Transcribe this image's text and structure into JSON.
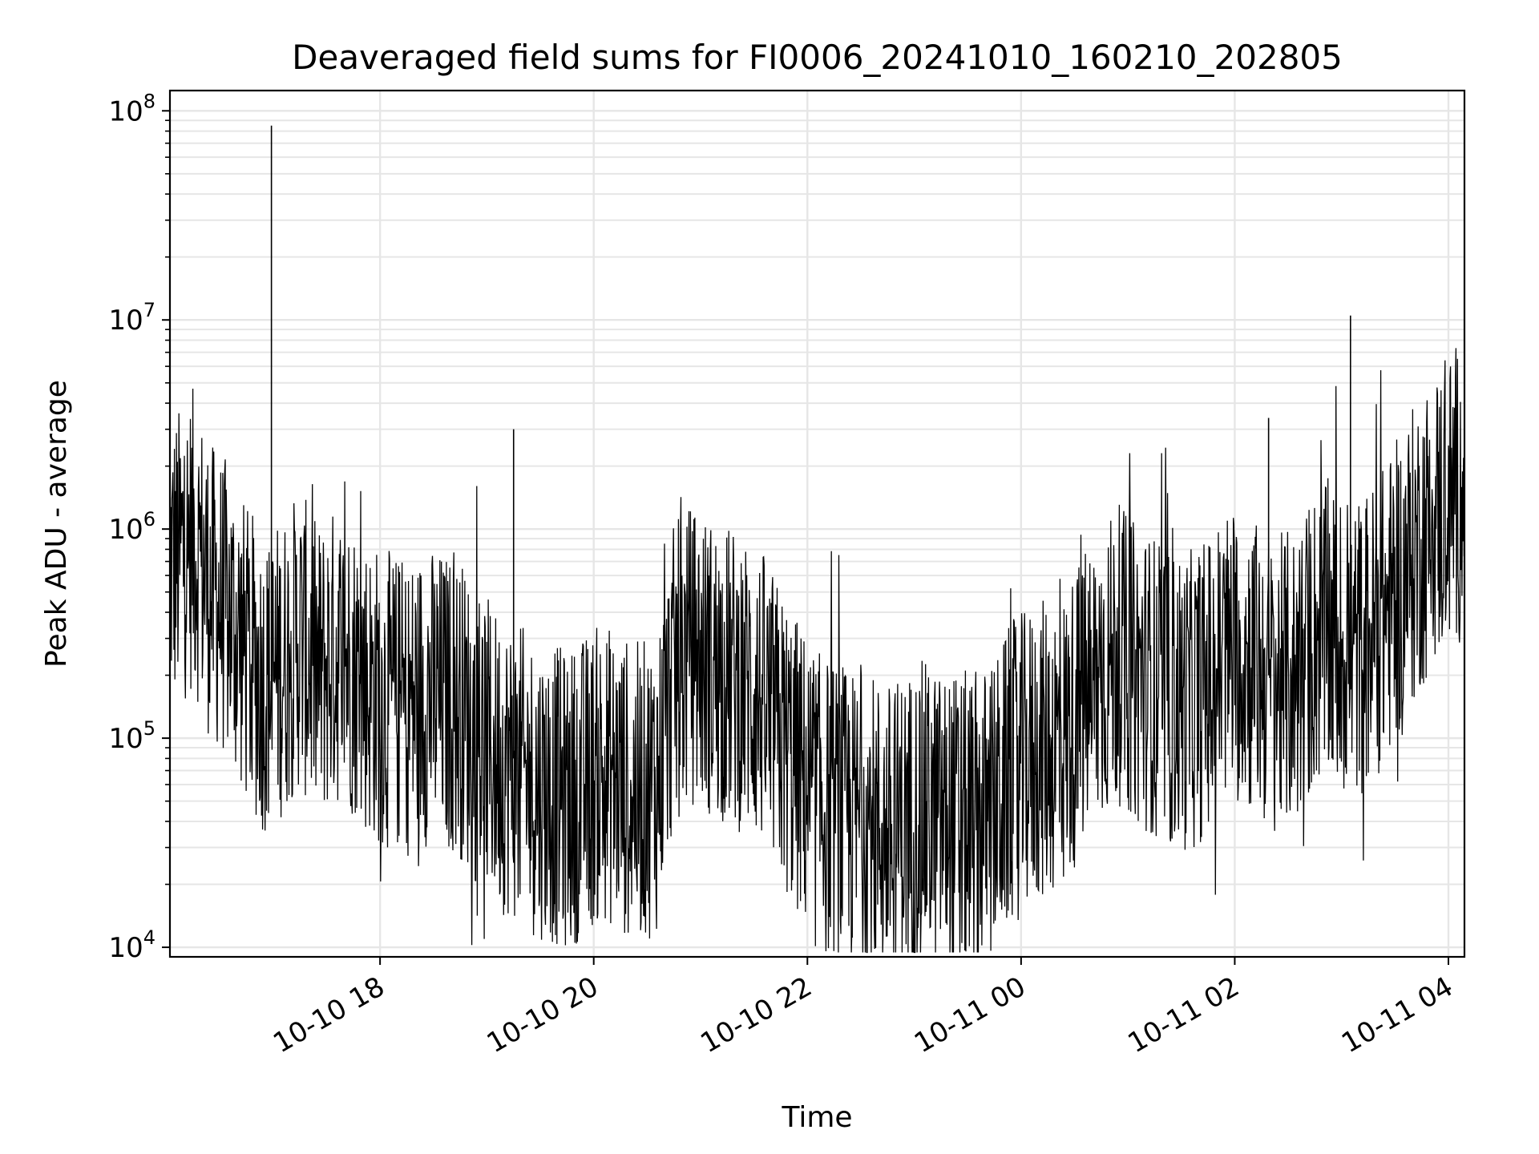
{
  "chart_data": {
    "type": "line",
    "title": "Deaveraged field sums for FI0006_20241010_160210_202805",
    "xlabel": "Time",
    "ylabel": "Peak ADU - average",
    "xscale": "time",
    "yscale": "log",
    "xlim": [
      "2024-10-10 16:02",
      "2024-10-11 04:09"
    ],
    "ylim": [
      9000,
      125000000
    ],
    "grid": true,
    "legend": "none",
    "line_color": "#000000",
    "grid_color": "#e6e6e6",
    "x_ticks": [
      {
        "value": "2024-10-10 18:00",
        "label": "10-10 18"
      },
      {
        "value": "2024-10-10 20:00",
        "label": "10-10 20"
      },
      {
        "value": "2024-10-10 22:00",
        "label": "10-10 22"
      },
      {
        "value": "2024-10-11 00:00",
        "label": "10-11 00"
      },
      {
        "value": "2024-10-11 02:00",
        "label": "10-11 02"
      },
      {
        "value": "2024-10-11 04:00",
        "label": "10-11 04"
      }
    ],
    "y_ticks": [
      {
        "value": 10000,
        "base": "10",
        "exp": "4"
      },
      {
        "value": 100000,
        "base": "10",
        "exp": "5"
      },
      {
        "value": 1000000,
        "base": "10",
        "exp": "6"
      },
      {
        "value": 10000000,
        "base": "10",
        "exp": "7"
      },
      {
        "value": 100000000,
        "base": "10",
        "exp": "8"
      }
    ],
    "series": [
      {
        "values": [
          [
            "2024-10-10 16:05",
            700000
          ],
          [
            "2024-10-10 16:15",
            900000
          ],
          [
            "2024-10-10 16:25",
            500000
          ],
          [
            "2024-10-10 16:35",
            400000
          ],
          [
            "2024-10-10 16:45",
            250000
          ],
          [
            "2024-10-10 16:55",
            180000
          ],
          [
            "2024-10-10 17:05",
            220000
          ],
          [
            "2024-10-10 17:15",
            300000
          ],
          [
            "2024-10-10 17:25",
            200000
          ],
          [
            "2024-10-10 17:35",
            250000
          ],
          [
            "2024-10-10 17:45",
            220000
          ],
          [
            "2024-10-10 17:55",
            170000
          ],
          [
            "2024-10-10 18:05",
            150000
          ],
          [
            "2024-10-10 18:15",
            140000
          ],
          [
            "2024-10-10 18:25",
            160000
          ],
          [
            "2024-10-10 18:35",
            150000
          ],
          [
            "2024-10-10 18:45",
            140000
          ],
          [
            "2024-10-10 18:55",
            100000
          ],
          [
            "2024-10-10 19:05",
            80000
          ],
          [
            "2024-10-10 19:15",
            70000
          ],
          [
            "2024-10-10 19:25",
            60000
          ],
          [
            "2024-10-10 19:35",
            55000
          ],
          [
            "2024-10-10 19:45",
            50000
          ],
          [
            "2024-10-10 19:55",
            60000
          ],
          [
            "2024-10-10 20:05",
            70000
          ],
          [
            "2024-10-10 20:15",
            60000
          ],
          [
            "2024-10-10 20:25",
            55000
          ],
          [
            "2024-10-10 20:35",
            60000
          ],
          [
            "2024-10-10 20:45",
            200000
          ],
          [
            "2024-10-10 20:55",
            250000
          ],
          [
            "2024-10-10 21:05",
            220000
          ],
          [
            "2024-10-10 21:15",
            200000
          ],
          [
            "2024-10-10 21:25",
            180000
          ],
          [
            "2024-10-10 21:35",
            150000
          ],
          [
            "2024-10-10 21:45",
            100000
          ],
          [
            "2024-10-10 21:55",
            70000
          ],
          [
            "2024-10-10 22:05",
            50000
          ],
          [
            "2024-10-10 22:15",
            45000
          ],
          [
            "2024-10-10 22:25",
            40000
          ],
          [
            "2024-10-10 22:35",
            40000
          ],
          [
            "2024-10-10 22:45",
            35000
          ],
          [
            "2024-10-10 22:55",
            40000
          ],
          [
            "2024-10-10 23:05",
            45000
          ],
          [
            "2024-10-10 23:15",
            40000
          ],
          [
            "2024-10-10 23:25",
            40000
          ],
          [
            "2024-10-10 23:35",
            40000
          ],
          [
            "2024-10-10 23:45",
            45000
          ],
          [
            "2024-10-10 23:55",
            70000
          ],
          [
            "2024-10-11 00:05",
            80000
          ],
          [
            "2024-10-11 00:15",
            90000
          ],
          [
            "2024-10-11 00:25",
            100000
          ],
          [
            "2024-10-11 00:35",
            150000
          ],
          [
            "2024-10-11 00:45",
            200000
          ],
          [
            "2024-10-11 00:55",
            250000
          ],
          [
            "2024-10-11 01:05",
            200000
          ],
          [
            "2024-10-11 01:15",
            180000
          ],
          [
            "2024-10-11 01:25",
            150000
          ],
          [
            "2024-10-11 01:35",
            150000
          ],
          [
            "2024-10-11 01:45",
            180000
          ],
          [
            "2024-10-11 01:55",
            250000
          ],
          [
            "2024-10-11 02:05",
            250000
          ],
          [
            "2024-10-11 02:15",
            200000
          ],
          [
            "2024-10-11 02:25",
            180000
          ],
          [
            "2024-10-11 02:35",
            200000
          ],
          [
            "2024-10-11 02:45",
            300000
          ],
          [
            "2024-10-11 02:55",
            300000
          ],
          [
            "2024-10-11 03:05",
            250000
          ],
          [
            "2024-10-11 03:15",
            300000
          ],
          [
            "2024-10-11 03:25",
            400000
          ],
          [
            "2024-10-11 03:35",
            600000
          ],
          [
            "2024-10-11 03:45",
            900000
          ],
          [
            "2024-10-11 03:55",
            1200000
          ],
          [
            "2024-10-11 04:05",
            1500000
          ]
        ]
      }
    ],
    "spikes": [
      [
        "2024-10-10 16:59",
        85000000
      ],
      [
        "2024-10-10 19:15",
        3000000
      ],
      [
        "2024-10-11 02:19",
        3400000
      ],
      [
        "2024-10-11 03:05",
        10500000
      ]
    ]
  }
}
